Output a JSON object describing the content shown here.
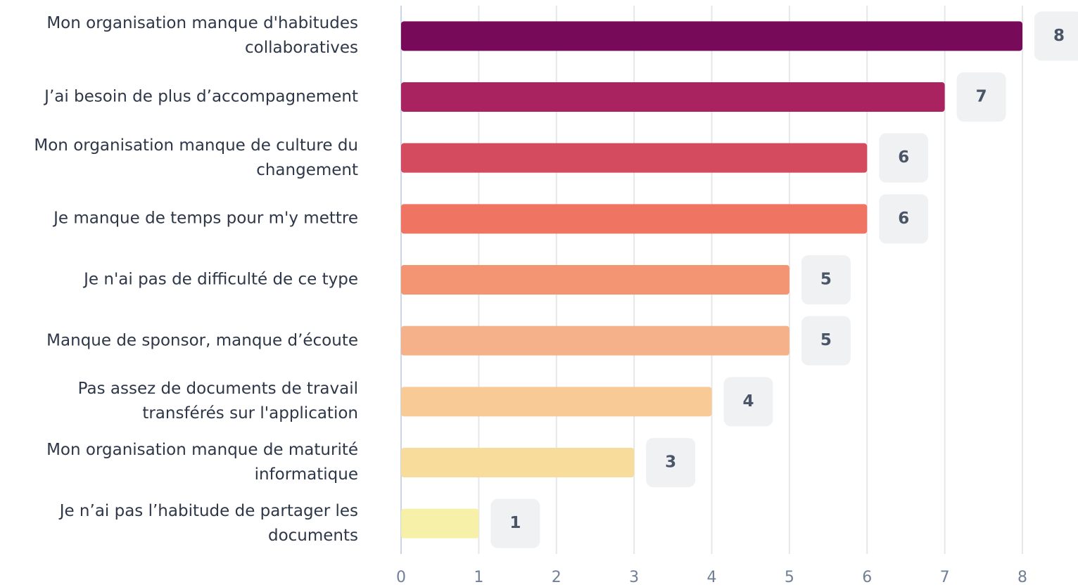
{
  "chart_data": {
    "type": "bar",
    "orientation": "horizontal",
    "categories": [
      "Mon organisation manque d'habitudes collaboratives",
      "J’ai besoin de plus d’accompagnement",
      "Mon organisation manque de culture du changement",
      "Je manque de temps pour m'y mettre",
      "Je n'ai pas de difficulté de ce type",
      "Manque de sponsor, manque d’écoute",
      "Pas assez de documents de travail transférés sur l'application",
      "Mon organisation manque de maturité informatique",
      "Je n’ai pas l’habitude de partager les documents"
    ],
    "values": [
      8,
      7,
      6,
      6,
      5,
      5,
      4,
      3,
      1
    ],
    "colors": [
      "#780a5a",
      "#a8235f",
      "#d44a5f",
      "#f07462",
      "#f39572",
      "#f5b28a",
      "#f8ca96",
      "#f8dc9b",
      "#f6f0a8"
    ],
    "xlim": [
      0,
      8
    ],
    "xticks": [
      0,
      1,
      2,
      3,
      4,
      5,
      6,
      7,
      8
    ],
    "grid": true
  }
}
